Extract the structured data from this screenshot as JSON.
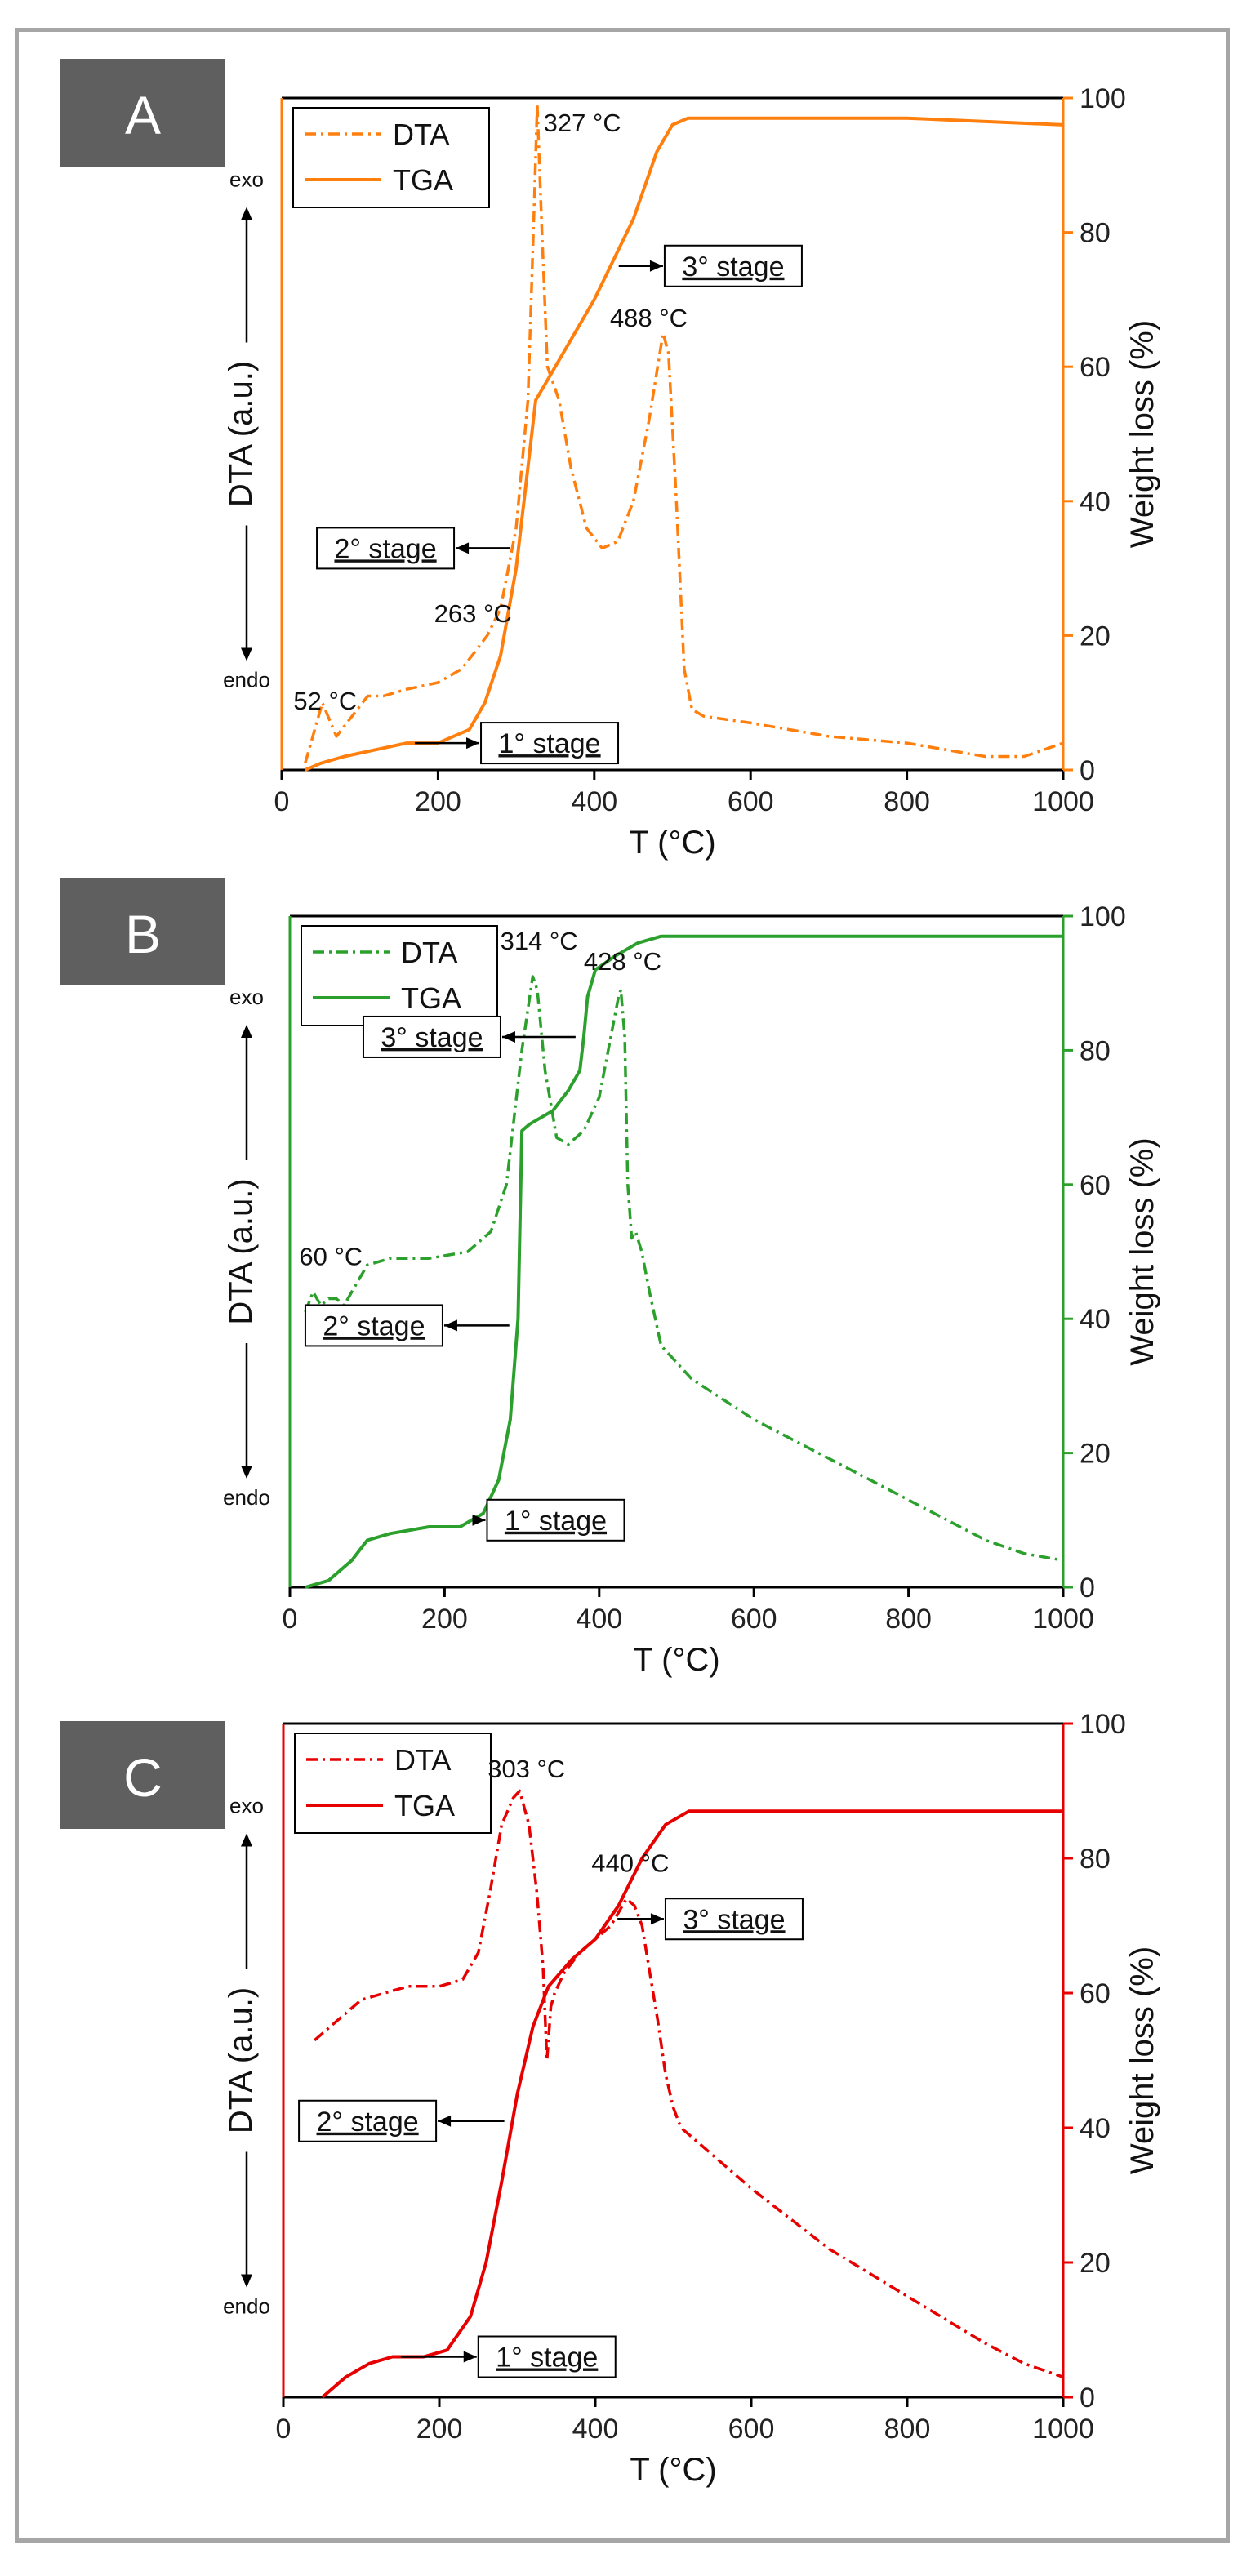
{
  "chart_data": [
    {
      "type": "line",
      "panel": "A",
      "color": "#ff7f0e",
      "xlabel": "T (°C)",
      "ylabel_left": "DTA (a.u.)",
      "ylabel_right": "Weight loss (%)",
      "exo_label": "exo",
      "endo_label": "endo",
      "xlim": [
        0,
        1000
      ],
      "ylim": [
        0,
        100
      ],
      "x_ticks": [
        "0",
        "200",
        "400",
        "600",
        "800",
        "1000"
      ],
      "y_ticks": [
        "0",
        "20",
        "40",
        "60",
        "80",
        "100"
      ],
      "legend": [
        "DTA",
        "TGA"
      ],
      "series": [
        {
          "name": "DTA",
          "style": "dash-dot",
          "x": [
            30,
            52,
            70,
            90,
            110,
            130,
            160,
            200,
            230,
            250,
            263,
            280,
            300,
            315,
            322,
            327,
            333,
            340,
            355,
            370,
            390,
            410,
            430,
            450,
            470,
            488,
            495,
            505,
            515,
            525,
            540,
            600,
            700,
            800,
            900,
            950,
            1000
          ],
          "y": [
            1,
            10,
            5,
            8,
            11,
            11,
            12,
            13,
            15,
            18,
            20,
            24,
            36,
            55,
            80,
            99,
            80,
            60,
            55,
            45,
            36,
            33,
            34,
            40,
            52,
            65,
            62,
            40,
            15,
            9,
            8,
            7,
            5,
            4,
            2,
            2,
            4
          ]
        },
        {
          "name": "TGA",
          "style": "solid",
          "x": [
            30,
            50,
            80,
            120,
            160,
            200,
            240,
            260,
            280,
            300,
            315,
            325,
            330,
            360,
            400,
            450,
            480,
            500,
            520,
            600,
            800,
            1000
          ],
          "y": [
            0,
            1,
            2,
            3,
            4,
            4,
            6,
            10,
            17,
            30,
            45,
            55,
            56,
            62,
            70,
            82,
            92,
            96,
            97,
            97,
            97,
            96
          ]
        }
      ],
      "annotations": [
        {
          "text": "327 °C",
          "x": 335,
          "y": 95
        },
        {
          "text": "488 °C",
          "x": 420,
          "y": 66
        },
        {
          "text": "263 °C",
          "x": 195,
          "y": 22
        },
        {
          "text": "52 °C",
          "x": 15,
          "y": 9
        }
      ],
      "stages": [
        {
          "text": "1° stage",
          "x": 255,
          "y": 4
        },
        {
          "text": "2° stage",
          "x": 45,
          "y": 33
        },
        {
          "text": "3° stage",
          "x": 490,
          "y": 75
        }
      ]
    },
    {
      "type": "line",
      "panel": "B",
      "color": "#2ca02c",
      "xlabel": "T (°C)",
      "ylabel_left": "DTA (a.u.)",
      "ylabel_right": "Weight loss (%)",
      "exo_label": "exo",
      "endo_label": "endo",
      "xlim": [
        0,
        1000
      ],
      "ylim": [
        0,
        100
      ],
      "x_ticks": [
        "0",
        "200",
        "400",
        "600",
        "800",
        "1000"
      ],
      "y_ticks": [
        "0",
        "20",
        "40",
        "60",
        "80",
        "100"
      ],
      "legend": [
        "DTA",
        "TGA"
      ],
      "series": [
        {
          "name": "DTA",
          "style": "dash-dot",
          "x": [
            20,
            30,
            40,
            50,
            60,
            70,
            80,
            90,
            100,
            130,
            180,
            230,
            260,
            280,
            300,
            314,
            320,
            330,
            345,
            360,
            380,
            400,
            415,
            425,
            428,
            433,
            437,
            442,
            447,
            455,
            465,
            480,
            520,
            600,
            700,
            800,
            900,
            950,
            1000
          ],
          "y": [
            41,
            44,
            42,
            43,
            43,
            42,
            44,
            46,
            48,
            49,
            49,
            50,
            53,
            60,
            80,
            91,
            89,
            77,
            67,
            66,
            68,
            73,
            82,
            88,
            89,
            82,
            60,
            52,
            53,
            50,
            44,
            36,
            31,
            25,
            19,
            13,
            7,
            5,
            4
          ]
        },
        {
          "name": "TGA",
          "style": "solid",
          "x": [
            20,
            50,
            80,
            100,
            130,
            180,
            220,
            250,
            270,
            285,
            295,
            300,
            310,
            340,
            360,
            375,
            380,
            385,
            395,
            420,
            450,
            480,
            500,
            600,
            800,
            1000
          ],
          "y": [
            0,
            1,
            4,
            7,
            8,
            9,
            9,
            11,
            16,
            25,
            40,
            68,
            69,
            71,
            74,
            77,
            82,
            88,
            92,
            94,
            96,
            97,
            97,
            97,
            97,
            97
          ]
        }
      ],
      "annotations": [
        {
          "text": "314 °C",
          "x": 272,
          "y": 95
        },
        {
          "text": "428 °C",
          "x": 380,
          "y": 92
        },
        {
          "text": "60 °C",
          "x": 12,
          "y": 48
        }
      ],
      "stages": [
        {
          "text": "1° stage",
          "x": 255,
          "y": 10
        },
        {
          "text": "2° stage",
          "x": 20,
          "y": 39
        },
        {
          "text": "3° stage",
          "x": 95,
          "y": 82
        }
      ]
    },
    {
      "type": "line",
      "panel": "C",
      "color": "#e60000",
      "xlabel": "T (°C)",
      "ylabel_left": "DTA (a.u.)",
      "ylabel_right": "Weight loss (%)",
      "exo_label": "exo",
      "endo_label": "endo",
      "xlim": [
        0,
        1000
      ],
      "ylim": [
        0,
        100
      ],
      "x_ticks": [
        "0",
        "200",
        "400",
        "600",
        "800",
        "1000"
      ],
      "y_ticks": [
        "0",
        "20",
        "40",
        "60",
        "80",
        "100"
      ],
      "legend": [
        "DTA",
        "TGA"
      ],
      "series": [
        {
          "name": "DTA",
          "style": "dash-dot",
          "x": [
            40,
            60,
            80,
            100,
            130,
            160,
            200,
            230,
            250,
            265,
            280,
            295,
            303,
            315,
            325,
            333,
            338,
            343,
            348,
            360,
            380,
            400,
            420,
            440,
            450,
            460,
            470,
            480,
            490,
            500,
            510,
            530,
            560,
            600,
            700,
            800,
            900,
            950,
            1000
          ],
          "y": [
            53,
            55,
            57,
            59,
            60,
            61,
            61,
            62,
            66,
            75,
            85,
            89,
            90,
            85,
            75,
            64,
            50,
            58,
            60,
            63,
            66,
            68,
            70,
            74,
            73,
            70,
            63,
            56,
            48,
            43,
            40,
            38,
            35,
            31,
            22,
            15,
            8,
            5,
            3
          ]
        },
        {
          "name": "TGA",
          "style": "solid",
          "x": [
            50,
            80,
            110,
            140,
            180,
            210,
            240,
            260,
            280,
            300,
            320,
            340,
            370,
            400,
            430,
            460,
            490,
            520,
            560,
            600,
            800,
            1000
          ],
          "y": [
            0,
            3,
            5,
            6,
            6,
            7,
            12,
            20,
            32,
            45,
            55,
            61,
            65,
            68,
            73,
            80,
            85,
            87,
            87,
            87,
            87,
            87
          ]
        }
      ],
      "annotations": [
        {
          "text": "303 °C",
          "x": 262,
          "y": 92
        },
        {
          "text": "440 °C",
          "x": 395,
          "y": 78
        }
      ],
      "stages": [
        {
          "text": "1° stage",
          "x": 250,
          "y": 6
        },
        {
          "text": "2° stage",
          "x": 20,
          "y": 41
        },
        {
          "text": "3° stage",
          "x": 490,
          "y": 71
        }
      ]
    }
  ]
}
